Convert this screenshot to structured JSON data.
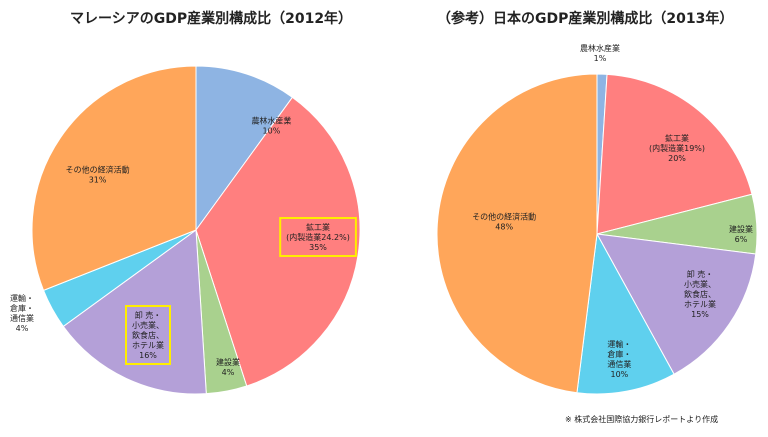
{
  "chart_data": [
    {
      "type": "pie",
      "title": "マレーシアのGDP産業別構成比（2012年）",
      "slices": [
        {
          "label": "農林水産業",
          "value": 10,
          "value_label": "10%",
          "color": "#8eb4e3"
        },
        {
          "label": "鉱工業\n(内製造業24.2%)",
          "value": 35,
          "value_label": "35%",
          "color": "#ff7f7f",
          "highlight": true
        },
        {
          "label": "建設業",
          "value": 4,
          "value_label": "4%",
          "color": "#a9d18e"
        },
        {
          "label": "卸 売・\n小売業、\n飲食店、\nホテル業",
          "value": 16,
          "value_label": "16%",
          "color": "#b4a0d8",
          "highlight": true
        },
        {
          "label": "運輸・\n倉庫・\n通信業",
          "value": 4,
          "value_label": "4%",
          "color": "#5fd0ee"
        },
        {
          "label": "その他の経済活動",
          "value": 31,
          "value_label": "31%",
          "color": "#ffa65a"
        }
      ]
    },
    {
      "type": "pie",
      "title": "（参考）日本のGDP産業別構成比（2013年）",
      "slices": [
        {
          "label": "農林水産業",
          "value": 1,
          "value_label": "1%",
          "color": "#8eb4e3"
        },
        {
          "label": "鉱工業\n(内製造業19%)",
          "value": 20,
          "value_label": "20%",
          "color": "#ff7f7f"
        },
        {
          "label": "建設業",
          "value": 6,
          "value_label": "6%",
          "color": "#a9d18e"
        },
        {
          "label": "卸 売・\n小売業、\n飲食店、\nホテル業",
          "value": 15,
          "value_label": "15%",
          "color": "#b4a0d8"
        },
        {
          "label": "運輸・\n倉庫・\n通信業",
          "value": 10,
          "value_label": "10%",
          "color": "#5fd0ee"
        },
        {
          "label": "その他の経済活動",
          "value": 48,
          "value_label": "48%",
          "color": "#ffa65a"
        }
      ]
    }
  ],
  "source_note": "※ 株式会社国際協力銀行レポートより作成"
}
